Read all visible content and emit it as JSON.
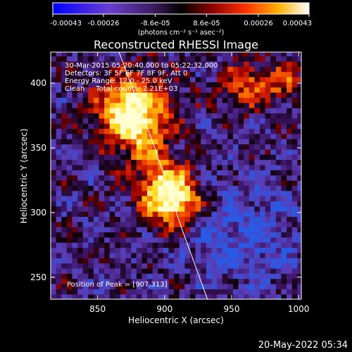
{
  "chart_data": {
    "type": "heatmap",
    "title": "Reconstructed RHESSI Image",
    "xlabel": "Heliocentric X (arcsec)",
    "ylabel": "Heliocentric Y (arcsec)",
    "xlim": [
      815,
      1002
    ],
    "ylim": [
      233,
      424
    ],
    "x_ticks": [
      850,
      900,
      950,
      1000
    ],
    "y_ticks": [
      250,
      300,
      350,
      400
    ],
    "colorbar": {
      "colormap": "blue-purple-black-red-orange-yellow-white",
      "range": [
        -0.00043,
        0.00043
      ],
      "tick_values": [
        -0.00043,
        -0.00026,
        -8.6e-05,
        8.6e-05,
        0.00026,
        0.00043
      ],
      "tick_labels": [
        "-0.00043",
        "-0.00026",
        "-8.6e-05",
        "8.6e-05",
        "0.00026",
        "0.00043"
      ],
      "unit_label": "(photons cm⁻² s⁻¹ asec⁻²)"
    },
    "annotations": [
      "30-Mar-2015 05:20:40.000 to 05:22:32.000",
      "Detectors: 3F 5F 6F 7F 8F 9F, Att 0",
      "Energy Range: 12.0 - 25.0 keV",
      "Clean     Total counts: 2.21E+03"
    ],
    "peak_label": "Position of Peak = [907,313]",
    "peak_position": [
      907,
      313
    ],
    "bright_regions": [
      {
        "x": 878,
        "y": 378
      },
      {
        "x": 905,
        "y": 312
      },
      {
        "x": 960,
        "y": 398
      },
      {
        "x": 990,
        "y": 400
      }
    ],
    "limb_curve": {
      "x": [
        866,
        893,
        913,
        932
      ],
      "y": [
        424,
        349,
        287,
        233
      ]
    },
    "colors": {
      "background": "#000000",
      "text": "#ffffff",
      "limb": "#ffffff"
    }
  },
  "footer": {
    "timestamp": "20-May-2022 05:34"
  }
}
